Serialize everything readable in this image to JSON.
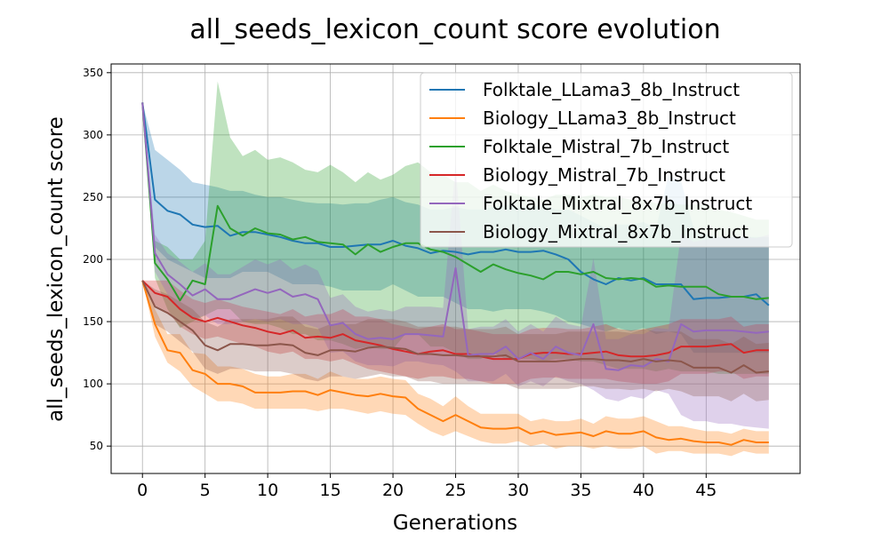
{
  "chart_data": {
    "type": "line",
    "title": "all_seeds_lexicon_count score evolution",
    "xlabel": "Generations",
    "ylabel": "all_seeds_lexicon_count score",
    "xlim": [
      -2.5,
      52.5
    ],
    "ylim": [
      28,
      357
    ],
    "xticks": [
      0,
      5,
      10,
      15,
      20,
      25,
      30,
      35,
      40,
      45
    ],
    "yticks": [
      50,
      100,
      150,
      200,
      250,
      300,
      350
    ],
    "grid": true,
    "legend_position": "top-right",
    "x": [
      0,
      1,
      2,
      3,
      4,
      5,
      6,
      7,
      8,
      9,
      10,
      11,
      12,
      13,
      14,
      15,
      16,
      17,
      18,
      19,
      20,
      21,
      22,
      23,
      24,
      25,
      26,
      27,
      28,
      29,
      30,
      31,
      32,
      33,
      34,
      35,
      36,
      37,
      38,
      39,
      40,
      41,
      42,
      43,
      44,
      45,
      46,
      47,
      48,
      49,
      50
    ],
    "series": [
      {
        "name": "Folktale_LLama3_8b_Instruct",
        "color": "#1f77b4",
        "values": [
          326,
          248,
          239,
          236,
          228,
          226,
          227,
          219,
          222,
          222,
          220,
          218,
          215,
          213,
          213,
          210,
          210,
          211,
          212,
          212,
          215,
          211,
          209,
          205,
          207,
          206,
          204,
          206,
          206,
          208,
          206,
          206,
          207,
          204,
          200,
          190,
          184,
          180,
          185,
          183,
          185,
          180,
          180,
          180,
          168,
          169,
          169,
          170,
          170,
          172,
          163
        ],
        "lower": [
          326,
          210,
          200,
          195,
          190,
          185,
          185,
          185,
          190,
          190,
          190,
          185,
          180,
          180,
          180,
          178,
          175,
          175,
          175,
          175,
          180,
          175,
          170,
          170,
          170,
          165,
          160,
          160,
          158,
          160,
          160,
          160,
          158,
          155,
          150,
          148,
          145,
          142,
          145,
          142,
          145,
          140,
          142,
          140,
          125,
          125,
          125,
          125,
          125,
          125,
          125
        ],
        "upper": [
          326,
          288,
          280,
          272,
          262,
          260,
          258,
          255,
          255,
          252,
          250,
          250,
          248,
          246,
          245,
          245,
          244,
          245,
          245,
          248,
          250,
          246,
          244,
          240,
          240,
          242,
          240,
          240,
          242,
          244,
          242,
          242,
          244,
          240,
          240,
          235,
          230,
          225,
          228,
          228,
          230,
          225,
          268,
          263,
          225,
          220,
          218,
          218,
          218,
          218,
          218
        ]
      },
      {
        "name": "Biology_LLama3_8b_Instruct",
        "color": "#ff7f0e",
        "values": [
          183,
          148,
          127,
          125,
          111,
          108,
          100,
          100,
          98,
          93,
          93,
          93,
          94,
          94,
          91,
          95,
          93,
          91,
          90,
          92,
          90,
          89,
          80,
          75,
          70,
          75,
          70,
          65,
          64,
          64,
          65,
          60,
          62,
          59,
          60,
          61,
          58,
          62,
          60,
          60,
          62,
          57,
          55,
          56,
          54,
          53,
          53,
          51,
          55,
          53,
          53
        ],
        "lower": [
          183,
          138,
          117,
          110,
          98,
          92,
          86,
          86,
          84,
          80,
          80,
          80,
          80,
          80,
          78,
          80,
          80,
          78,
          76,
          78,
          76,
          75,
          68,
          62,
          58,
          62,
          58,
          54,
          52,
          52,
          54,
          50,
          52,
          48,
          50,
          50,
          48,
          50,
          48,
          48,
          50,
          44,
          46,
          46,
          44,
          44,
          44,
          42,
          46,
          44,
          44
        ],
        "upper": [
          183,
          160,
          140,
          140,
          125,
          124,
          114,
          114,
          112,
          108,
          106,
          106,
          108,
          108,
          104,
          110,
          106,
          104,
          104,
          106,
          104,
          103,
          92,
          88,
          82,
          90,
          82,
          76,
          76,
          76,
          76,
          70,
          72,
          70,
          70,
          72,
          68,
          74,
          72,
          72,
          74,
          70,
          66,
          66,
          64,
          62,
          62,
          60,
          64,
          62,
          62
        ]
      },
      {
        "name": "Folktale_Mistral_7b_Instruct",
        "color": "#2ca02c",
        "values": [
          326,
          197,
          184,
          167,
          183,
          180,
          243,
          225,
          219,
          225,
          221,
          220,
          216,
          218,
          214,
          213,
          212,
          204,
          212,
          206,
          210,
          213,
          213,
          208,
          206,
          202,
          196,
          190,
          196,
          192,
          189,
          187,
          184,
          190,
          190,
          188,
          190,
          185,
          184,
          185,
          184,
          178,
          179,
          178,
          178,
          178,
          172,
          170,
          170,
          168,
          169
        ],
        "lower": [
          326,
          185,
          160,
          145,
          150,
          155,
          160,
          160,
          150,
          148,
          148,
          145,
          140,
          140,
          135,
          135,
          132,
          128,
          130,
          128,
          128,
          140,
          140,
          130,
          130,
          125,
          120,
          120,
          125,
          120,
          120,
          120,
          118,
          120,
          120,
          118,
          118,
          115,
          112,
          112,
          112,
          110,
          112,
          110,
          110,
          110,
          108,
          108,
          108,
          108,
          108
        ],
        "upper": [
          326,
          215,
          210,
          200,
          200,
          215,
          343,
          298,
          283,
          288,
          280,
          282,
          278,
          272,
          270,
          276,
          270,
          262,
          270,
          264,
          268,
          275,
          278,
          270,
          268,
          262,
          262,
          255,
          260,
          255,
          252,
          250,
          248,
          252,
          252,
          250,
          252,
          250,
          250,
          248,
          248,
          245,
          245,
          244,
          244,
          244,
          240,
          238,
          235,
          232,
          232
        ]
      },
      {
        "name": "Biology_Mistral_7b_Instruct",
        "color": "#d62728",
        "values": [
          183,
          173,
          170,
          160,
          153,
          150,
          153,
          150,
          147,
          145,
          142,
          140,
          143,
          137,
          138,
          137,
          140,
          135,
          133,
          131,
          128,
          126,
          124,
          126,
          127,
          124,
          124,
          122,
          120,
          120,
          120,
          124,
          125,
          125,
          124,
          124,
          125,
          126,
          123,
          122,
          122,
          123,
          125,
          130,
          130,
          130,
          131,
          132,
          125,
          127,
          127
        ],
        "lower": [
          183,
          163,
          158,
          146,
          140,
          136,
          138,
          135,
          132,
          130,
          126,
          124,
          126,
          120,
          120,
          118,
          120,
          116,
          112,
          110,
          108,
          106,
          104,
          106,
          106,
          104,
          104,
          102,
          100,
          100,
          100,
          104,
          105,
          105,
          104,
          104,
          104,
          104,
          102,
          101,
          100,
          100,
          102,
          108,
          108,
          108,
          110,
          110,
          104,
          106,
          106
        ],
        "upper": [
          183,
          183,
          183,
          175,
          168,
          165,
          168,
          165,
          162,
          160,
          158,
          156,
          160,
          154,
          156,
          156,
          160,
          154,
          154,
          152,
          148,
          146,
          144,
          146,
          148,
          144,
          144,
          142,
          140,
          140,
          140,
          144,
          145,
          145,
          144,
          144,
          146,
          148,
          144,
          143,
          144,
          146,
          148,
          152,
          152,
          152,
          152,
          154,
          146,
          148,
          148
        ]
      },
      {
        "name": "Folktale_Mixtral_8x7b_Instruct",
        "color": "#9467bd",
        "values": [
          326,
          205,
          188,
          180,
          171,
          176,
          168,
          168,
          172,
          176,
          173,
          176,
          170,
          172,
          168,
          147,
          149,
          140,
          136,
          137,
          136,
          140,
          140,
          139,
          138,
          193,
          123,
          124,
          124,
          130,
          120,
          125,
          120,
          130,
          125,
          123,
          148,
          112,
          111,
          115,
          114,
          120,
          118,
          148,
          142,
          143,
          143,
          143,
          142,
          141,
          142
        ],
        "lower": [
          326,
          190,
          172,
          160,
          152,
          155,
          148,
          148,
          150,
          152,
          150,
          152,
          148,
          148,
          145,
          125,
          126,
          118,
          115,
          115,
          114,
          118,
          118,
          116,
          115,
          110,
          102,
          102,
          102,
          108,
          98,
          102,
          98,
          106,
          102,
          100,
          95,
          88,
          86,
          90,
          88,
          95,
          92,
          75,
          70,
          70,
          68,
          68,
          66,
          65,
          64
        ],
        "upper": [
          326,
          220,
          205,
          198,
          190,
          197,
          188,
          188,
          194,
          200,
          196,
          200,
          192,
          196,
          191,
          169,
          172,
          162,
          158,
          160,
          158,
          162,
          162,
          162,
          161,
          276,
          144,
          146,
          146,
          152,
          142,
          148,
          142,
          154,
          148,
          146,
          201,
          136,
          136,
          140,
          140,
          145,
          144,
          221,
          214,
          216,
          218,
          218,
          218,
          217,
          220
        ]
      },
      {
        "name": "Biology_Mixtral_8x7b_Instruct",
        "color": "#8c564b",
        "values": [
          183,
          162,
          157,
          150,
          143,
          131,
          127,
          132,
          132,
          131,
          131,
          132,
          131,
          125,
          123,
          127,
          127,
          126,
          129,
          130,
          129,
          128,
          124,
          124,
          123,
          123,
          122,
          122,
          122,
          123,
          118,
          118,
          118,
          118,
          119,
          120,
          120,
          119,
          119,
          118,
          120,
          118,
          119,
          118,
          113,
          113,
          113,
          109,
          115,
          109,
          110
        ],
        "lower": [
          183,
          148,
          142,
          134,
          126,
          112,
          108,
          112,
          112,
          110,
          110,
          110,
          108,
          104,
          102,
          106,
          106,
          104,
          106,
          108,
          106,
          106,
          102,
          102,
          100,
          100,
          100,
          100,
          100,
          100,
          96,
          96,
          96,
          96,
          96,
          98,
          98,
          96,
          96,
          95,
          96,
          94,
          96,
          94,
          90,
          90,
          90,
          86,
          92,
          86,
          87
        ],
        "upper": [
          183,
          176,
          172,
          166,
          160,
          150,
          146,
          152,
          152,
          152,
          152,
          154,
          154,
          146,
          144,
          148,
          148,
          148,
          152,
          152,
          152,
          150,
          146,
          146,
          146,
          146,
          144,
          144,
          144,
          146,
          140,
          140,
          140,
          140,
          142,
          142,
          142,
          142,
          142,
          141,
          144,
          142,
          142,
          142,
          136,
          136,
          136,
          132,
          138,
          132,
          133
        ]
      }
    ]
  }
}
